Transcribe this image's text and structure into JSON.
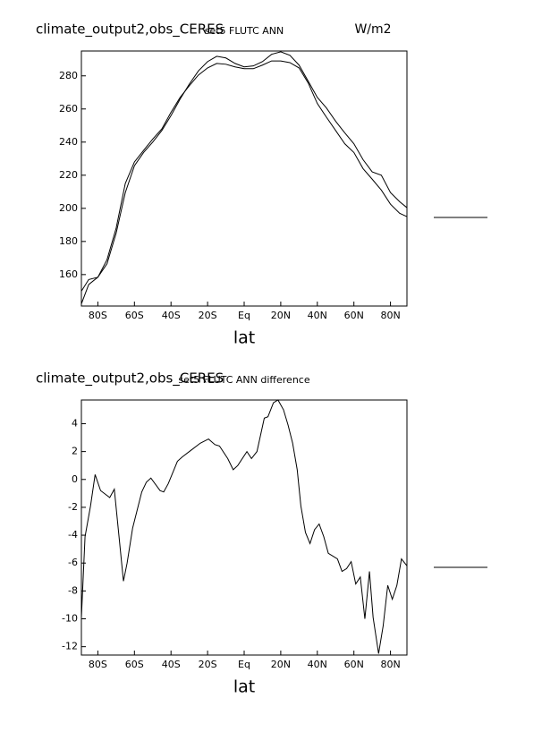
{
  "chart_data": [
    {
      "type": "line",
      "title": "climate_output2,obs_CERES",
      "subtitle": "set5 FLUTC ANN",
      "units": "W/m2",
      "x_label": "lat",
      "x": [
        -89,
        -85,
        -80,
        -75,
        -70,
        -65,
        -60,
        -55,
        -50,
        -45,
        -40,
        -35,
        -30,
        -25,
        -20,
        -15,
        -10,
        -5,
        0,
        5,
        10,
        15,
        20,
        25,
        30,
        35,
        40,
        45,
        50,
        55,
        60,
        65,
        70,
        75,
        80,
        85,
        89
      ],
      "series": [
        {
          "color": "#000000",
          "values": [
            150,
            157,
            158.4,
            166.5,
            185,
            209.5,
            225.7,
            233.7,
            240,
            247,
            256,
            266,
            275,
            283,
            288.6,
            291.8,
            290.8,
            287.5,
            285.4,
            286,
            288.6,
            293,
            294.5,
            292.4,
            286.5,
            276.8,
            267,
            260.6,
            252.6,
            245.6,
            239,
            229.4,
            222,
            220,
            209.5,
            204,
            200.4
          ]
        },
        {
          "color": "#000000",
          "values": [
            142.3,
            154,
            158.4,
            169,
            188,
            215,
            228,
            235,
            241.8,
            248,
            258,
            267,
            274,
            280.5,
            284.8,
            287.5,
            287,
            285.4,
            284.3,
            284.3,
            286.5,
            289,
            289,
            288,
            284.8,
            275.7,
            263.3,
            255,
            247,
            239,
            233.7,
            224,
            217.6,
            211,
            202.5,
            197,
            195
          ]
        }
      ],
      "xlim": [
        -89,
        89
      ],
      "ylim": [
        141,
        295
      ],
      "xticks": [
        {
          "value": -80,
          "label": "80S"
        },
        {
          "value": -60,
          "label": "60S"
        },
        {
          "value": -40,
          "label": "40S"
        },
        {
          "value": -20,
          "label": "20S"
        },
        {
          "value": 0,
          "label": "Eq"
        },
        {
          "value": 20,
          "label": "20N"
        },
        {
          "value": 40,
          "label": "40N"
        },
        {
          "value": 60,
          "label": "60N"
        },
        {
          "value": 80,
          "label": "80N"
        }
      ],
      "yticks": [
        160,
        180,
        200,
        220,
        240,
        260,
        280
      ]
    },
    {
      "type": "line",
      "title": "climate_output2,obs_CERES",
      "subtitle": "set5 FLUTC ANN difference",
      "x_label": "lat",
      "x": [
        -89,
        -87,
        -84,
        -81.5,
        -78.5,
        -73.5,
        -71,
        -66,
        -64,
        -61,
        -56,
        -53.5,
        -51,
        -46,
        -44,
        -41.5,
        -36.5,
        -34,
        -29,
        -24,
        -19.5,
        -16,
        -13.5,
        -9,
        -6,
        -3.5,
        1.5,
        4,
        7,
        11,
        13,
        16,
        18.5,
        21.5,
        24,
        26.5,
        29,
        31,
        33.5,
        36,
        38.5,
        41,
        43.5,
        46,
        51,
        53.5,
        56,
        58.5,
        61,
        63.5,
        66,
        68.5,
        70.5,
        73.5,
        76,
        78.5,
        81,
        83.5,
        86,
        89
      ],
      "series": [
        {
          "color": "#000000",
          "values": [
            -9.9,
            -4.1,
            -1.9,
            0.35,
            -0.8,
            -1.3,
            -0.7,
            -7.3,
            -6.0,
            -3.5,
            -0.9,
            -0.2,
            0.1,
            -0.8,
            -0.9,
            -0.3,
            1.3,
            1.6,
            2.1,
            2.6,
            2.9,
            2.5,
            2.4,
            1.5,
            0.7,
            1.0,
            2.0,
            1.5,
            2.0,
            4.4,
            4.5,
            5.5,
            5.7,
            5.0,
            3.9,
            2.6,
            0.7,
            -1.9,
            -3.8,
            -4.6,
            -3.6,
            -3.2,
            -4.1,
            -5.3,
            -5.7,
            -6.6,
            -6.4,
            -5.9,
            -7.5,
            -7.0,
            -10.0,
            -6.6,
            -9.9,
            -12.5,
            -10.5,
            -7.6,
            -8.6,
            -7.6,
            -5.7,
            -6.2
          ]
        }
      ],
      "xlim": [
        -89,
        89
      ],
      "ylim": [
        -12.6,
        5.7
      ],
      "xticks": [
        {
          "value": -80,
          "label": "80S"
        },
        {
          "value": -60,
          "label": "60S"
        },
        {
          "value": -40,
          "label": "40S"
        },
        {
          "value": -20,
          "label": "20S"
        },
        {
          "value": 0,
          "label": "Eq"
        },
        {
          "value": 20,
          "label": "20N"
        },
        {
          "value": 40,
          "label": "40N"
        },
        {
          "value": 60,
          "label": "60N"
        },
        {
          "value": 80,
          "label": "80N"
        }
      ],
      "yticks": [
        -12,
        -10,
        -8,
        -6,
        -4,
        -2,
        0,
        2,
        4
      ]
    }
  ]
}
